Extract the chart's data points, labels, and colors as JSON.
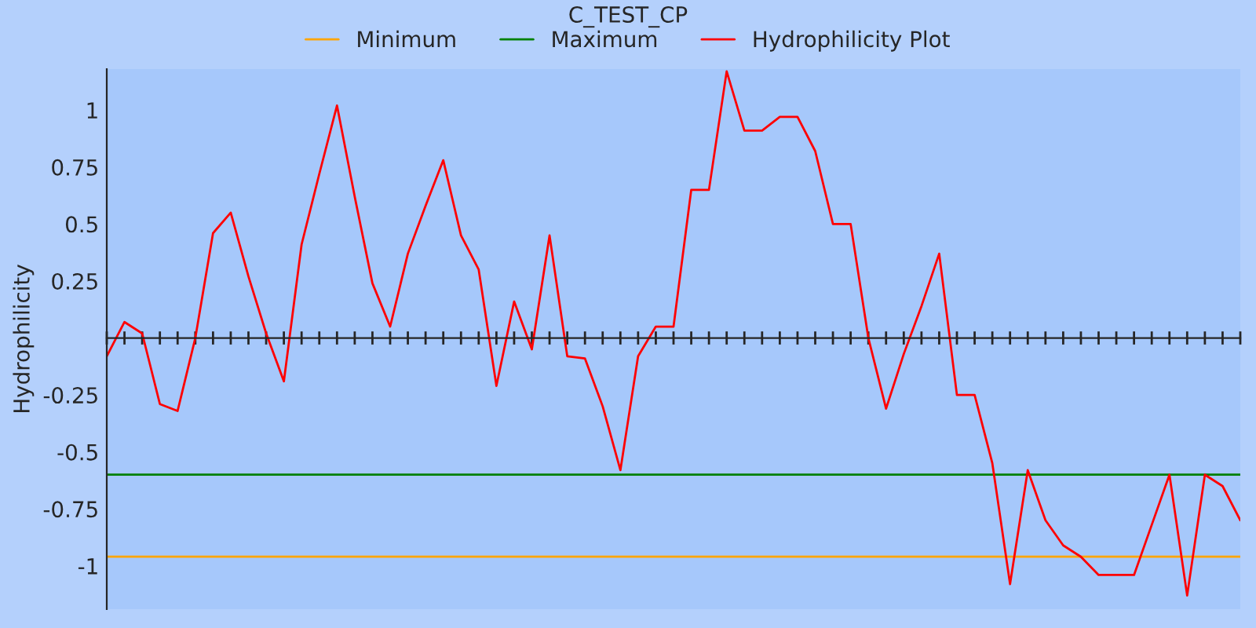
{
  "chart_data": {
    "type": "line",
    "title": "C_TEST_CP",
    "ylabel": "Hydrophilicity",
    "categories": [
      null,
      null,
      null,
      null,
      null,
      null,
      null,
      null,
      null,
      null,
      null,
      null,
      null,
      null,
      null,
      null,
      null,
      null,
      null,
      null,
      null,
      null,
      null,
      null,
      null,
      null,
      null,
      null,
      null,
      null,
      null,
      null,
      null,
      null,
      null,
      null,
      null,
      null,
      null,
      null,
      null,
      null,
      null,
      null,
      null,
      null,
      null,
      null,
      null,
      null,
      null,
      null,
      null,
      null,
      null,
      null,
      null,
      null,
      null,
      null,
      null,
      null,
      null,
      null,
      null
    ],
    "series": [
      {
        "name": "Minimum",
        "color": "#ffa500",
        "values": [
          -0.96,
          -0.96,
          -0.96,
          -0.96,
          -0.96,
          -0.96,
          -0.96,
          -0.96,
          -0.96,
          -0.96,
          -0.96,
          -0.96,
          -0.96,
          -0.96,
          -0.96,
          -0.96,
          -0.96,
          -0.96,
          -0.96,
          -0.96,
          -0.96,
          -0.96,
          -0.96,
          -0.96,
          -0.96,
          -0.96,
          -0.96,
          -0.96,
          -0.96,
          -0.96,
          -0.96,
          -0.96,
          -0.96,
          -0.96,
          -0.96,
          -0.96,
          -0.96,
          -0.96,
          -0.96,
          -0.96,
          -0.96,
          -0.96,
          -0.96,
          -0.96,
          -0.96,
          -0.96,
          -0.96,
          -0.96,
          -0.96,
          -0.96,
          -0.96,
          -0.96,
          -0.96,
          -0.96,
          -0.96,
          -0.96,
          -0.96,
          -0.96,
          -0.96,
          -0.96,
          -0.96,
          -0.96,
          -0.96,
          -0.96,
          -0.96
        ]
      },
      {
        "name": "Maximum",
        "color": "#008000",
        "values": [
          -0.6,
          -0.6,
          -0.6,
          -0.6,
          -0.6,
          -0.6,
          -0.6,
          -0.6,
          -0.6,
          -0.6,
          -0.6,
          -0.6,
          -0.6,
          -0.6,
          -0.6,
          -0.6,
          -0.6,
          -0.6,
          -0.6,
          -0.6,
          -0.6,
          -0.6,
          -0.6,
          -0.6,
          -0.6,
          -0.6,
          -0.6,
          -0.6,
          -0.6,
          -0.6,
          -0.6,
          -0.6,
          -0.6,
          -0.6,
          -0.6,
          -0.6,
          -0.6,
          -0.6,
          -0.6,
          -0.6,
          -0.6,
          -0.6,
          -0.6,
          -0.6,
          -0.6,
          -0.6,
          -0.6,
          -0.6,
          -0.6,
          -0.6,
          -0.6,
          -0.6,
          -0.6,
          -0.6,
          -0.6,
          -0.6,
          -0.6,
          -0.6,
          -0.6,
          -0.6,
          -0.6,
          -0.6,
          -0.6,
          -0.6,
          -0.6
        ]
      },
      {
        "name": "Hydrophilicity Plot",
        "color": "#ff0000",
        "values": [
          -0.08,
          0.07,
          0.02,
          -0.29,
          -0.32,
          0.0,
          0.46,
          0.55,
          0.27,
          0.02,
          -0.19,
          0.41,
          0.72,
          1.02,
          0.62,
          0.24,
          0.05,
          0.37,
          0.58,
          0.78,
          0.45,
          0.3,
          -0.21,
          0.16,
          -0.05,
          0.45,
          -0.08,
          -0.09,
          -0.3,
          -0.58,
          -0.08,
          0.05,
          0.05,
          0.65,
          0.65,
          1.17,
          0.91,
          0.91,
          0.97,
          0.97,
          0.82,
          0.5,
          0.5,
          0.0,
          -0.31,
          -0.07,
          0.14,
          0.37,
          -0.25,
          -0.25,
          -0.55,
          -1.08,
          -0.58,
          -0.8,
          -0.91,
          -0.96,
          -1.04,
          -1.04,
          -1.04,
          -0.82,
          -0.6,
          -1.13,
          -0.6,
          -0.65,
          -0.8
        ]
      }
    ],
    "ylim": [
      -1.19,
      1.18
    ],
    "yticks": [
      1,
      0.75,
      0.5,
      0.25,
      -0.25,
      -0.5,
      -0.75,
      -1
    ],
    "legend": "top",
    "grid": false,
    "marker": "none",
    "line_style": "solid"
  }
}
